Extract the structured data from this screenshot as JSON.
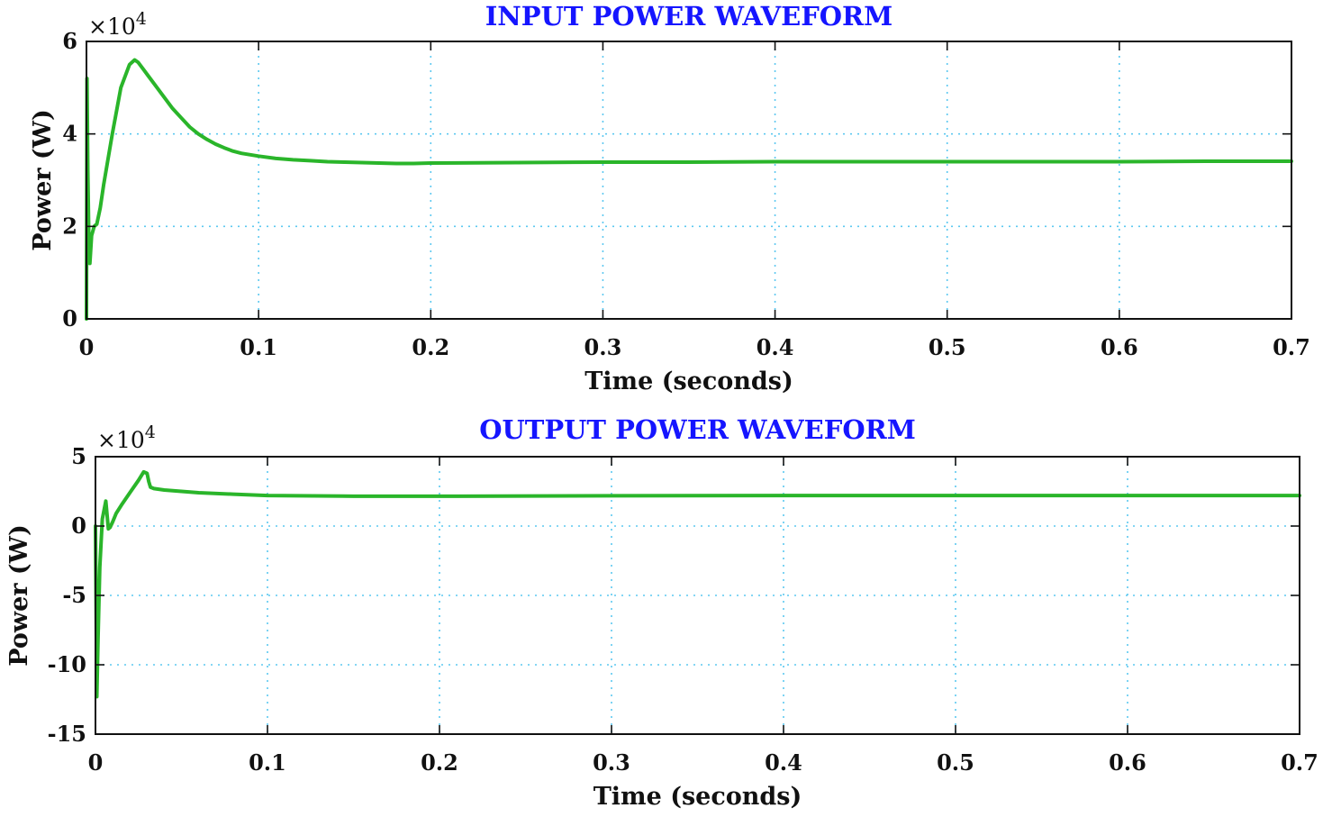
{
  "chart_data": [
    {
      "type": "line",
      "title": "INPUT POWER WAVEFORM",
      "xlabel": "Time (seconds)",
      "ylabel": "Power (W)",
      "y_multiplier": "×10",
      "y_exponent": "4",
      "xlim": [
        0,
        0.7
      ],
      "ylim": [
        0,
        6
      ],
      "xticks": [
        "0",
        "0.1",
        "0.2",
        "0.3",
        "0.4",
        "0.5",
        "0.6",
        "0.7"
      ],
      "yticks": [
        "0",
        "2",
        "4",
        "6"
      ],
      "grid": true,
      "color": "#2ab52a",
      "series": [
        {
          "x": [
            0,
            0.0003,
            0.0008,
            0.0015,
            0.002,
            0.003,
            0.0045,
            0.006,
            0.008,
            0.01,
            0.015,
            0.02,
            0.025,
            0.028,
            0.03,
            0.033,
            0.036,
            0.04,
            0.045,
            0.05,
            0.055,
            0.06,
            0.065,
            0.07,
            0.075,
            0.08,
            0.085,
            0.09,
            0.1,
            0.11,
            0.12,
            0.13,
            0.14,
            0.15,
            0.16,
            0.17,
            0.18,
            0.19,
            0.2,
            0.25,
            0.3,
            0.35,
            0.4,
            0.45,
            0.5,
            0.55,
            0.6,
            0.65,
            0.7
          ],
          "y": [
            0,
            5.2,
            3.2,
            1.4,
            1.2,
            1.8,
            2.0,
            2.05,
            2.4,
            2.9,
            4.0,
            5.0,
            5.5,
            5.6,
            5.55,
            5.4,
            5.25,
            5.05,
            4.8,
            4.55,
            4.35,
            4.15,
            4.0,
            3.88,
            3.78,
            3.7,
            3.63,
            3.58,
            3.52,
            3.47,
            3.44,
            3.42,
            3.4,
            3.39,
            3.38,
            3.37,
            3.36,
            3.36,
            3.37,
            3.38,
            3.39,
            3.39,
            3.4,
            3.4,
            3.4,
            3.4,
            3.4,
            3.41,
            3.41
          ]
        }
      ]
    },
    {
      "type": "line",
      "title": "OUTPUT POWER WAVEFORM",
      "xlabel": "Time (seconds)",
      "ylabel": "Power (W)",
      "y_multiplier": "×10",
      "y_exponent": "4",
      "xlim": [
        0,
        0.7
      ],
      "ylim": [
        -15,
        5
      ],
      "xticks": [
        "0",
        "0.1",
        "0.2",
        "0.3",
        "0.4",
        "0.5",
        "0.6",
        "0.7"
      ],
      "yticks": [
        "-15",
        "-10",
        "-5",
        "0",
        "5"
      ],
      "grid": true,
      "color": "#2ab52a",
      "series": [
        {
          "x": [
            0,
            0.0008,
            0.0015,
            0.0025,
            0.004,
            0.006,
            0.0075,
            0.0085,
            0.01,
            0.012,
            0.015,
            0.02,
            0.025,
            0.028,
            0.03,
            0.031,
            0.032,
            0.034,
            0.04,
            0.05,
            0.06,
            0.08,
            0.1,
            0.15,
            0.2,
            0.3,
            0.4,
            0.5,
            0.6,
            0.7
          ],
          "y": [
            0,
            -12.3,
            -8,
            -3,
            0.5,
            1.8,
            -0.2,
            -0.1,
            0.3,
            0.9,
            1.5,
            2.4,
            3.3,
            3.9,
            3.8,
            3.2,
            2.8,
            2.7,
            2.6,
            2.5,
            2.4,
            2.3,
            2.2,
            2.15,
            2.15,
            2.18,
            2.2,
            2.2,
            2.2,
            2.2
          ]
        }
      ]
    }
  ]
}
